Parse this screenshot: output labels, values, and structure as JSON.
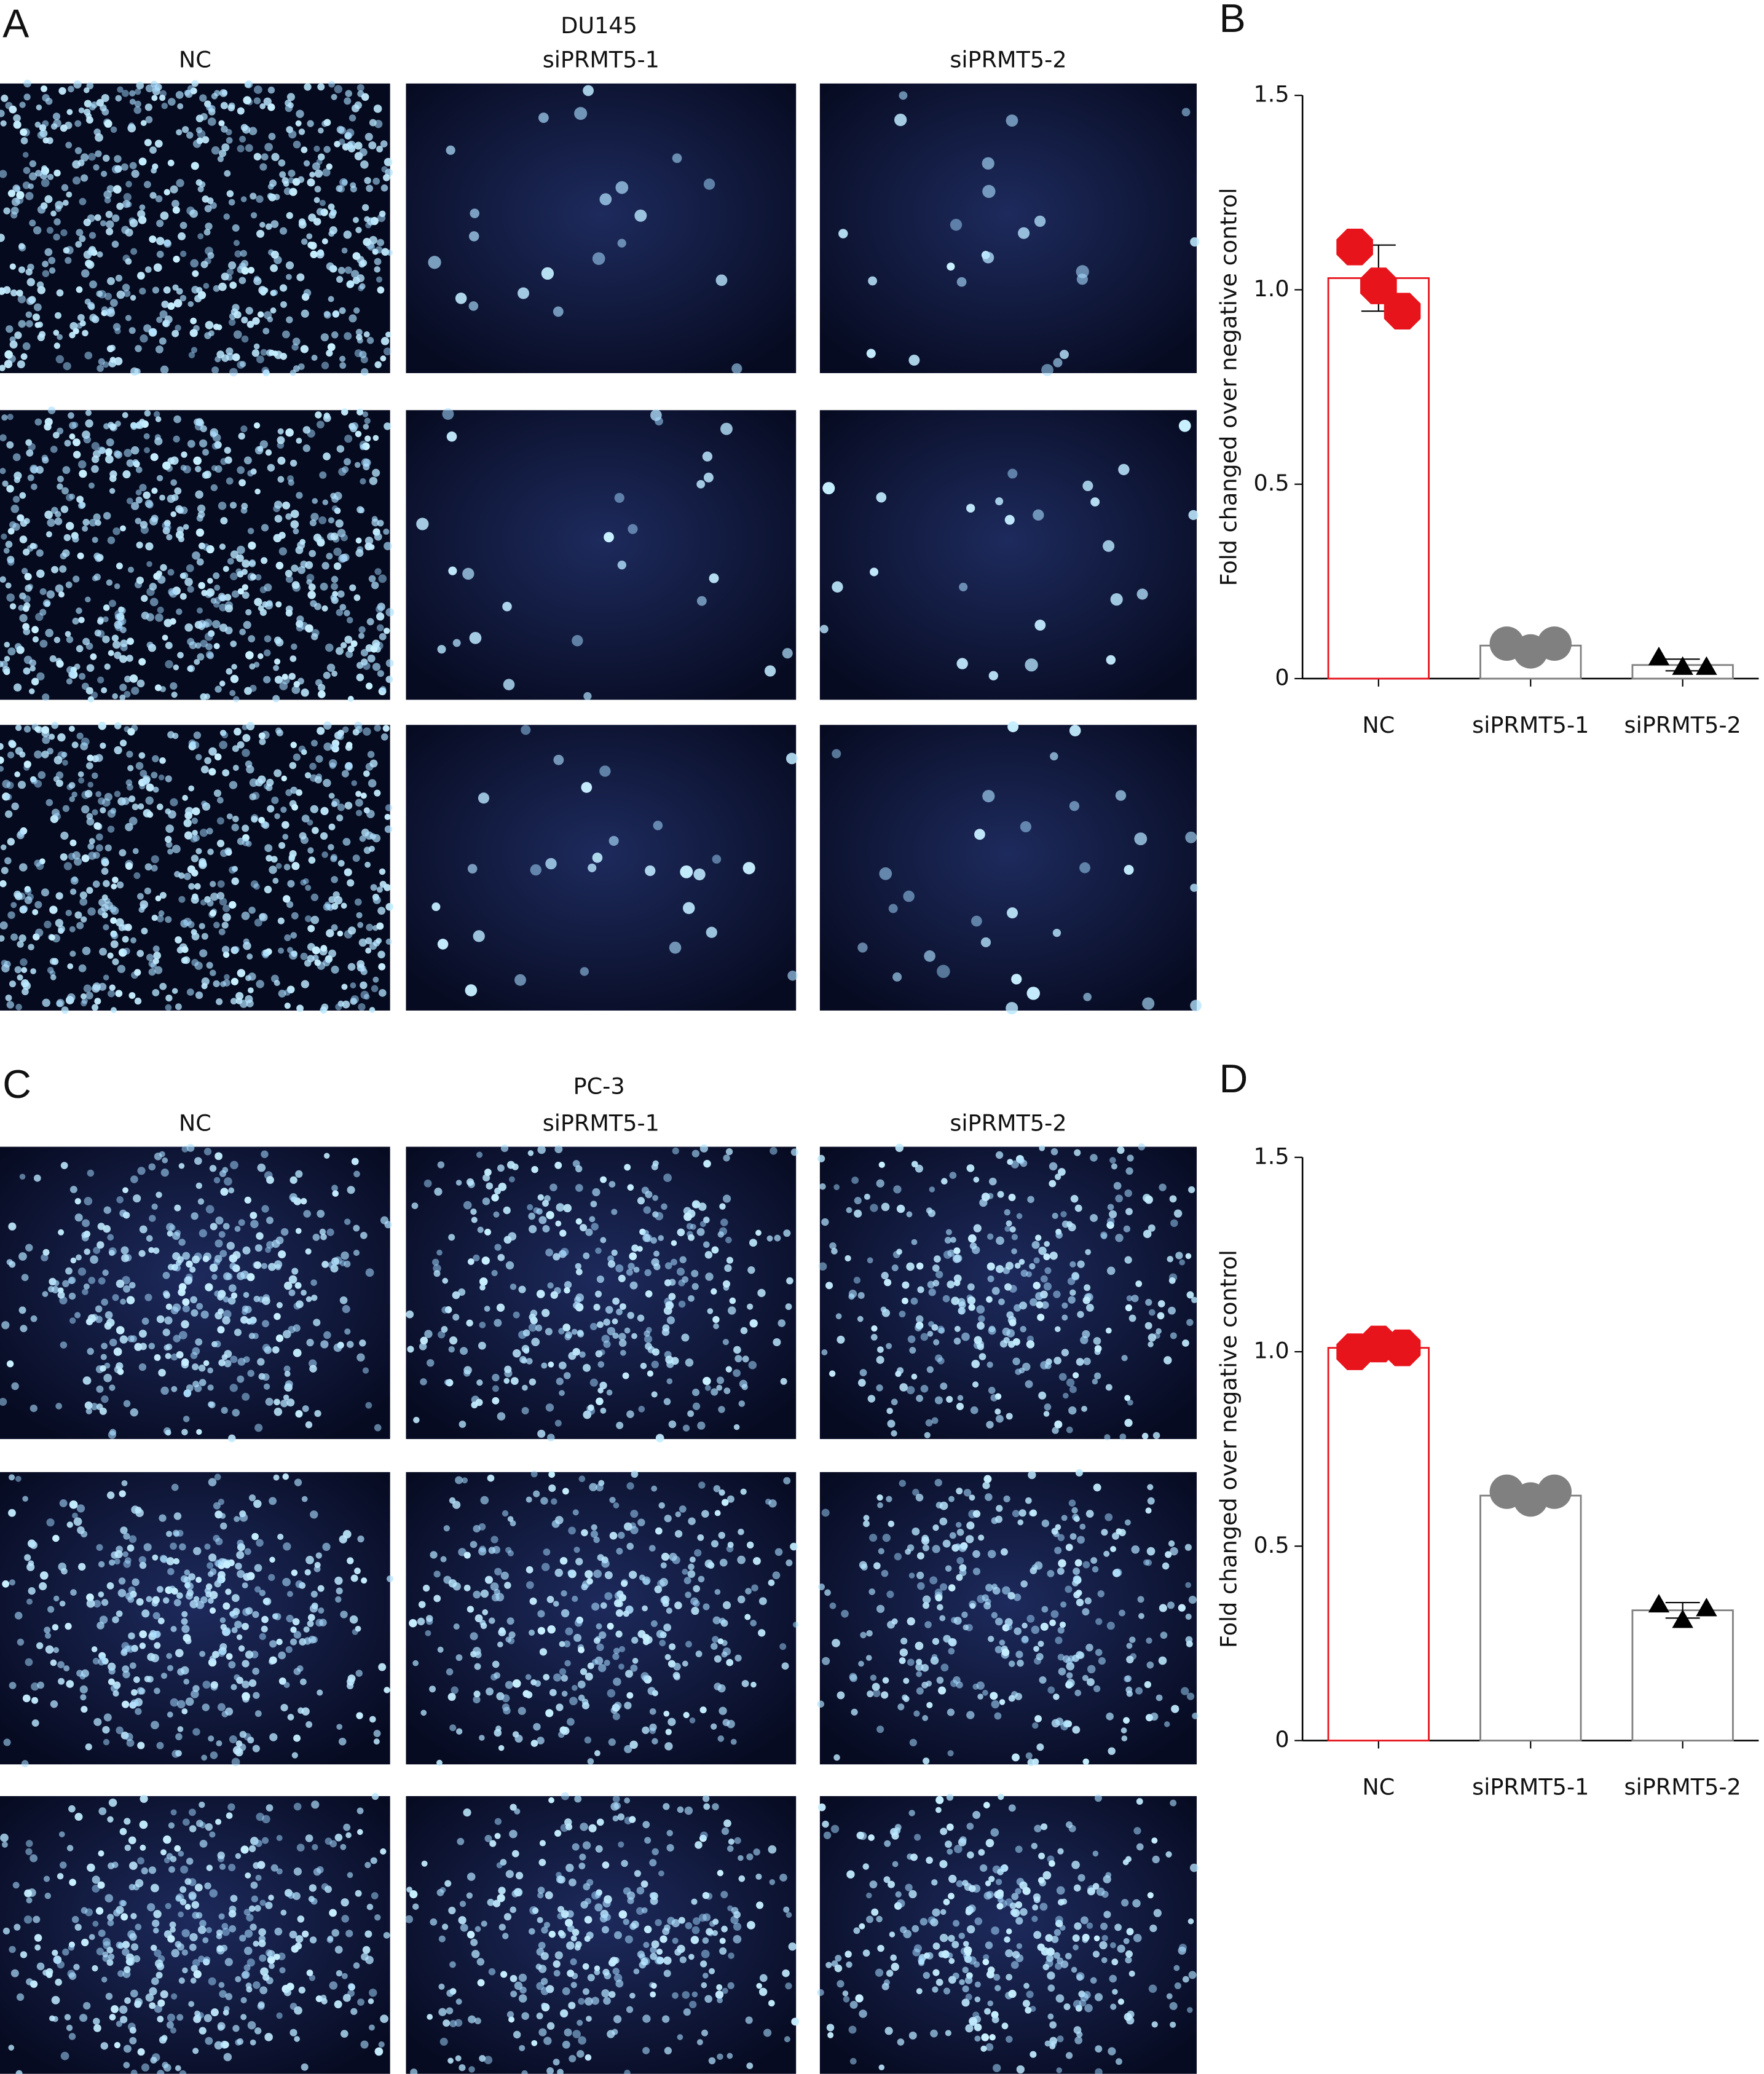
{
  "panels": [
    {
      "label": "A",
      "cell_line": "DU145",
      "columns": [
        "NC",
        "siPRMT5-1",
        "siPRMT5-2"
      ]
    },
    {
      "label": "C",
      "cell_line": "PC-3",
      "columns": [
        "NC",
        "siPRMT5-1",
        "siPRMT5-2"
      ]
    }
  ],
  "chart_data": [
    {
      "type": "bar",
      "panel": "B",
      "ylabel": "Fold changed over negative control",
      "categories": [
        "NC",
        "siPRMT5-1",
        "siPRMT5-2"
      ],
      "values": [
        1.03,
        0.085,
        0.035
      ],
      "errors": [
        0.085,
        0.01,
        0.015
      ],
      "points": [
        [
          1.11,
          1.01,
          0.945
        ],
        [
          0.09,
          0.07,
          0.09
        ],
        [
          0.055,
          0.03,
          0.03
        ]
      ],
      "edge_colors": [
        "#e8141c",
        "#808080",
        "#808080"
      ],
      "point_colors": [
        "#e8141c",
        "#808080",
        "#000000"
      ],
      "markers": [
        "octagon",
        "circle",
        "triangle"
      ],
      "ylim": [
        0,
        1.5
      ],
      "yticks": [
        0,
        0.5,
        {
          "value": 1,
          "label": "1.0"
        },
        1.5
      ]
    },
    {
      "type": "bar",
      "panel": "D",
      "ylabel": "Fold changed over negative control",
      "categories": [
        "NC",
        "siPRMT5-1",
        "siPRMT5-2"
      ],
      "values": [
        1.01,
        0.63,
        0.335
      ],
      "errors": [
        0.01,
        0.01,
        0.02
      ],
      "points": [
        [
          1.0,
          1.02,
          1.01
        ],
        [
          0.64,
          0.62,
          0.64
        ],
        [
          0.35,
          0.31,
          0.34
        ]
      ],
      "edge_colors": [
        "#e8141c",
        "#808080",
        "#808080"
      ],
      "point_colors": [
        "#e8141c",
        "#808080",
        "#000000"
      ],
      "markers": [
        "octagon",
        "circle",
        "triangle"
      ],
      "ylim": [
        0,
        1.5
      ],
      "yticks": [
        0,
        0.5,
        {
          "value": 1,
          "label": "1.0"
        },
        1.5
      ]
    }
  ]
}
